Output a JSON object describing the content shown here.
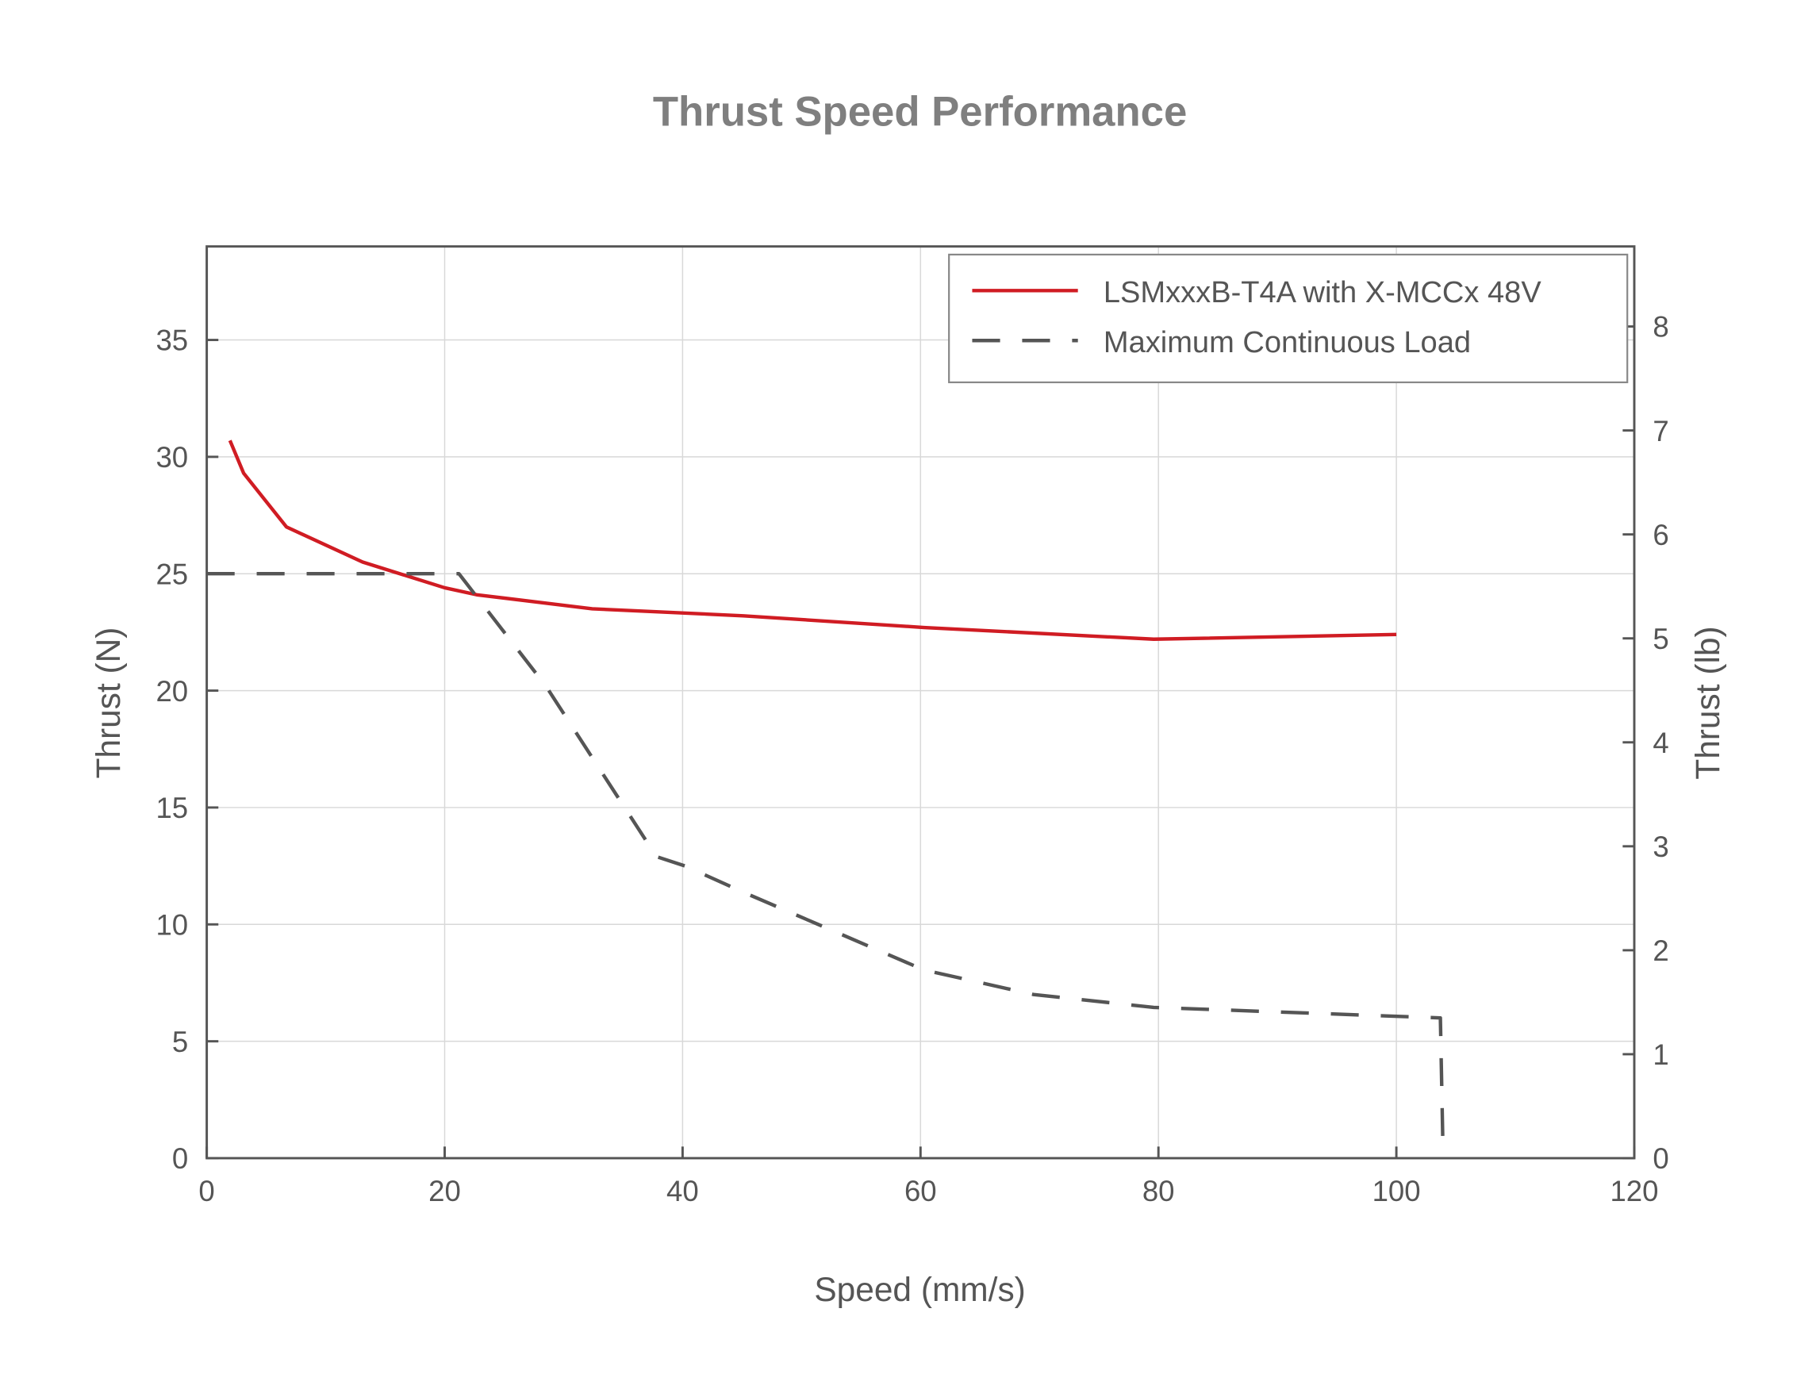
{
  "chart_data": {
    "type": "line",
    "title": "Thrust Speed Performance",
    "xlabel": "Speed (mm/s)",
    "ylabel": "Thrust (N)",
    "y2label": "Thrust (lb)",
    "xlim": [
      0,
      120
    ],
    "ylim": [
      0,
      39
    ],
    "y2lim": [
      0,
      8.77
    ],
    "xticks": [
      "0",
      "20",
      "40",
      "60",
      "80",
      "100",
      "120"
    ],
    "yticks": [
      "0",
      "5",
      "10",
      "15",
      "20",
      "25",
      "30",
      "35"
    ],
    "y2ticks": [
      "0",
      "1",
      "2",
      "3",
      "4",
      "5",
      "6",
      "7",
      "8"
    ],
    "grid": true,
    "legend_position": "top-right",
    "series": [
      {
        "name": "LSMxxxB-T4A with X-MCCx 48V",
        "style": "solid",
        "color": "#d01c23",
        "x": [
          1.95,
          3.1,
          6.7,
          13.1,
          20,
          22.7,
          32.4,
          45.1,
          60.3,
          79.6,
          100
        ],
        "y": [
          30.7,
          29.3,
          27.0,
          25.5,
          24.4,
          24.1,
          23.5,
          23.2,
          22.7,
          22.2,
          22.4
        ]
      },
      {
        "name": "Maximum Continuous Load",
        "style": "dashed",
        "color": "#555555",
        "x": [
          0,
          21.2,
          28.5,
          37.8,
          40.2,
          45,
          60.3,
          69.5,
          79.6,
          103.7,
          103.9
        ],
        "y": [
          25.0,
          25.0,
          20.2,
          12.9,
          12.5,
          11.4,
          8.05,
          7.0,
          6.45,
          6.0,
          0.85
        ]
      }
    ]
  }
}
